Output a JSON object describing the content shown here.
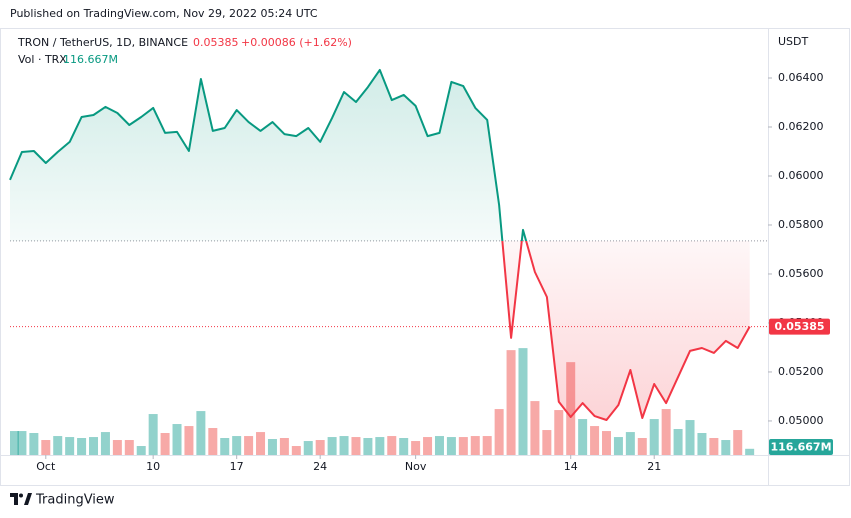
{
  "published": "Published on TradingView.com, Nov 29, 2022 05:24 UTC",
  "brand": "TradingView",
  "chart_data": {
    "type": "line",
    "title": "TRON / TetherUS, 1D, BINANCE",
    "change": "+0.00086 (+1.62%)",
    "ylabel": "USDT",
    "x": [
      "Sep 28",
      "Sep 29",
      "Sep 30",
      "Oct 1",
      "Oct 2",
      "Oct 3",
      "Oct 4",
      "Oct 5",
      "Oct 6",
      "Oct 7",
      "Oct 8",
      "Oct 9",
      "Oct 10",
      "Oct 11",
      "Oct 12",
      "Oct 13",
      "Oct 14",
      "Oct 15",
      "Oct 16",
      "Oct 17",
      "Oct 18",
      "Oct 19",
      "Oct 20",
      "Oct 21",
      "Oct 22",
      "Oct 23",
      "Oct 24",
      "Oct 25",
      "Oct 26",
      "Oct 27",
      "Oct 28",
      "Oct 29",
      "Oct 30",
      "Oct 31",
      "Nov 1",
      "Nov 2",
      "Nov 3",
      "Nov 4",
      "Nov 5",
      "Nov 6",
      "Nov 7",
      "Nov 8",
      "Nov 9",
      "Nov 10",
      "Nov 11",
      "Nov 12",
      "Nov 13",
      "Nov 14",
      "Nov 15",
      "Nov 16",
      "Nov 17",
      "Nov 18",
      "Nov 19",
      "Nov 20",
      "Nov 21",
      "Nov 22",
      "Nov 23",
      "Nov 24",
      "Nov 25",
      "Nov 26",
      "Nov 27",
      "Nov 28",
      "Nov 29"
    ],
    "xticks": [
      {
        "value": "Oct 1",
        "label": "Oct"
      },
      {
        "value": "Oct 10",
        "label": "10"
      },
      {
        "value": "Oct 17",
        "label": "17"
      },
      {
        "value": "Oct 24",
        "label": "24"
      },
      {
        "value": "Nov 1",
        "label": "Nov"
      },
      {
        "value": "Nov 14",
        "label": "14"
      },
      {
        "value": "Nov 21",
        "label": "21"
      }
    ],
    "ylim": [
      0.04861,
      0.06596
    ],
    "yticks": [
      {
        "value": 0.05,
        "label": "0.05000"
      },
      {
        "value": 0.052,
        "label": "0.05200"
      },
      {
        "value": 0.054,
        "label": "0.05400"
      },
      {
        "value": 0.056,
        "label": "0.05600"
      },
      {
        "value": 0.058,
        "label": "0.05800"
      },
      {
        "value": 0.06,
        "label": "0.06000"
      },
      {
        "value": 0.062,
        "label": "0.06200"
      },
      {
        "value": 0.064,
        "label": "0.06400"
      }
    ],
    "grid": false,
    "baseline": 0.05735,
    "series": [
      {
        "color_up": "#089981",
        "color_down": "#f23645",
        "values": [
          0.05984,
          0.06098,
          0.06102,
          0.06053,
          0.06098,
          0.06139,
          0.06241,
          0.06249,
          0.06282,
          0.06257,
          0.06208,
          0.06241,
          0.06278,
          0.06176,
          0.0618,
          0.06102,
          0.06396,
          0.06184,
          0.06196,
          0.06269,
          0.0622,
          0.06184,
          0.0622,
          0.06171,
          0.06163,
          0.06196,
          0.06139,
          0.06237,
          0.06343,
          0.06302,
          0.06363,
          0.06433,
          0.0631,
          0.06331,
          0.06286,
          0.06163,
          0.06176,
          0.06384,
          0.06367,
          0.06278,
          0.06229,
          0.05882,
          0.05339,
          0.0578,
          0.05608,
          0.05506,
          0.05078,
          0.05016,
          0.05073,
          0.0502,
          0.05004,
          0.05065,
          0.05208,
          0.05012,
          0.05151,
          0.05073,
          0.0518,
          0.05286,
          0.05298,
          0.05278,
          0.05327,
          0.05298,
          0.05385
        ]
      },
      {
        "name": "Vol · TRX",
        "type": "bar",
        "axis": "volume",
        "up_color": "#26a69a",
        "down_color": "#ef5350",
        "values": [
          451000000,
          451000000,
          414000000,
          282000000,
          357000000,
          338000000,
          320000000,
          338000000,
          432000000,
          282000000,
          282000000,
          169000000,
          771000000,
          414000000,
          583000000,
          545000000,
          827000000,
          508000000,
          320000000,
          357000000,
          357000000,
          432000000,
          301000000,
          320000000,
          169000000,
          263000000,
          282000000,
          338000000,
          357000000,
          338000000,
          320000000,
          338000000,
          357000000,
          320000000,
          263000000,
          338000000,
          357000000,
          338000000,
          338000000,
          357000000,
          357000000,
          865000000,
          1974000000,
          2012000000,
          1015000000,
          470000000,
          846000000,
          1748000000,
          677000000,
          545000000,
          451000000,
          338000000,
          432000000,
          320000000,
          677000000,
          865000000,
          489000000,
          658000000,
          414000000,
          320000000,
          282000000,
          470000000,
          116667000
        ],
        "value_labels": [
          null,
          null,
          null,
          null,
          null,
          null,
          null,
          null,
          null,
          null,
          null,
          null,
          null,
          null,
          null,
          null,
          null,
          null,
          null,
          null,
          null,
          null,
          null,
          null,
          null,
          null,
          null,
          null,
          null,
          null,
          null,
          null,
          null,
          null,
          null,
          null,
          null,
          null,
          null,
          null,
          null,
          null,
          null,
          null,
          null,
          null,
          null,
          null,
          null,
          null,
          null,
          null,
          null,
          null,
          null,
          null,
          null,
          null,
          null,
          null,
          null,
          null,
          "116.667M"
        ]
      }
    ],
    "volume_lim": [
      0,
      8000000000
    ]
  }
}
